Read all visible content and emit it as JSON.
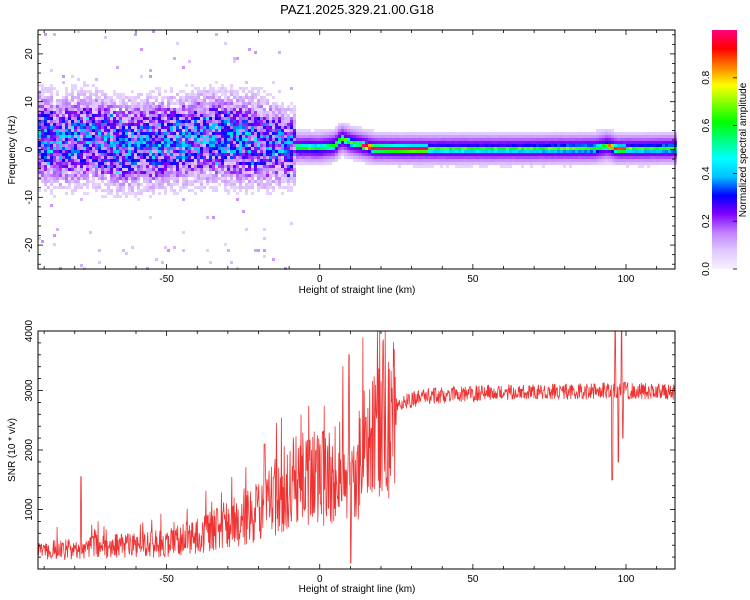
{
  "title": "PAZ1.2025.329.21.00.G18",
  "chart_data": [
    {
      "type": "heatmap",
      "xlabel": "Height of straight line (km)",
      "ylabel": "Frequency (Hz)",
      "xlim": [
        -92,
        116
      ],
      "ylim": [
        -25,
        25
      ],
      "xticks": [
        -50,
        0,
        50,
        100
      ],
      "yticks": [
        -20,
        -10,
        0,
        10,
        20
      ],
      "colorbar": {
        "label": "Normalized spectral amplitude",
        "range": [
          0,
          1
        ],
        "ticks": [
          "0.0",
          "0.2",
          "0.4",
          "0.6",
          "0.8"
        ],
        "tick_values": [
          0.0,
          0.2,
          0.4,
          0.6,
          0.8
        ],
        "colors": [
          "#f7f0ff",
          "#e0c8ff",
          "#c080ff",
          "#8000ff",
          "#0000ff",
          "#00c0ff",
          "#00ffff",
          "#00ff80",
          "#00ff00",
          "#80ff00",
          "#ffff00",
          "#ff8000",
          "#ff0000",
          "#ff0080"
        ]
      },
      "ridge_frequency_hz": [
        [
          -92,
          2.5
        ],
        [
          -85,
          1.5
        ],
        [
          -75,
          2.5
        ],
        [
          -65,
          0.8
        ],
        [
          -55,
          1.2
        ],
        [
          -45,
          2.0
        ],
        [
          -35,
          2.5
        ],
        [
          -25,
          2.0
        ],
        [
          -18,
          1.2
        ],
        [
          -10,
          0.5
        ],
        [
          0,
          0.3
        ],
        [
          5,
          0.8
        ],
        [
          7,
          2.3
        ],
        [
          10,
          1.5
        ],
        [
          13,
          1.0
        ],
        [
          18,
          0.2
        ],
        [
          30,
          0.1
        ],
        [
          60,
          0.1
        ],
        [
          90,
          0.2
        ],
        [
          94,
          0.8
        ],
        [
          97,
          0.1
        ],
        [
          116,
          0.2
        ]
      ]
    },
    {
      "type": "line",
      "xlabel": "Height of straight line (km)",
      "ylabel": "SNR (10 * v/v)",
      "xlim": [
        -92,
        116
      ],
      "ylim": [
        0,
        4000
      ],
      "xticks": [
        -50,
        0,
        50,
        100
      ],
      "yticks": [
        1000,
        2000,
        3000,
        4000
      ],
      "series": [
        {
          "name": "SNR",
          "color": "#ee3333",
          "trend": [
            [
              -92,
              300
            ],
            [
              -80,
              340
            ],
            [
              -70,
              380
            ],
            [
              -60,
              400
            ],
            [
              -50,
              430
            ],
            [
              -40,
              550
            ],
            [
              -30,
              750
            ],
            [
              -20,
              1000
            ],
            [
              -15,
              1200
            ],
            [
              -10,
              1400
            ],
            [
              -5,
              1500
            ],
            [
              0,
              1500
            ],
            [
              5,
              1550
            ],
            [
              8,
              1700
            ],
            [
              10,
              1200
            ],
            [
              12,
              1600
            ],
            [
              15,
              2000
            ],
            [
              18,
              2300
            ],
            [
              22,
              2600
            ],
            [
              25,
              2750
            ],
            [
              30,
              2850
            ],
            [
              35,
              2900
            ],
            [
              40,
              2920
            ],
            [
              50,
              2950
            ],
            [
              60,
              2970
            ],
            [
              70,
              2980
            ],
            [
              80,
              2980
            ],
            [
              90,
              2990
            ],
            [
              95,
              3000
            ],
            [
              100,
              3000
            ],
            [
              110,
              2980
            ],
            [
              116,
              2980
            ]
          ],
          "spikes": [
            [
              -78,
              1550
            ],
            [
              -18,
              2100
            ],
            [
              9.5,
              3600
            ],
            [
              10.2,
              100
            ],
            [
              15,
              2550
            ],
            [
              95.5,
              1500
            ],
            [
              96.5,
              4000
            ],
            [
              97.5,
              1800
            ],
            [
              98.5,
              4000
            ],
            [
              99,
              2200
            ]
          ]
        }
      ]
    }
  ]
}
